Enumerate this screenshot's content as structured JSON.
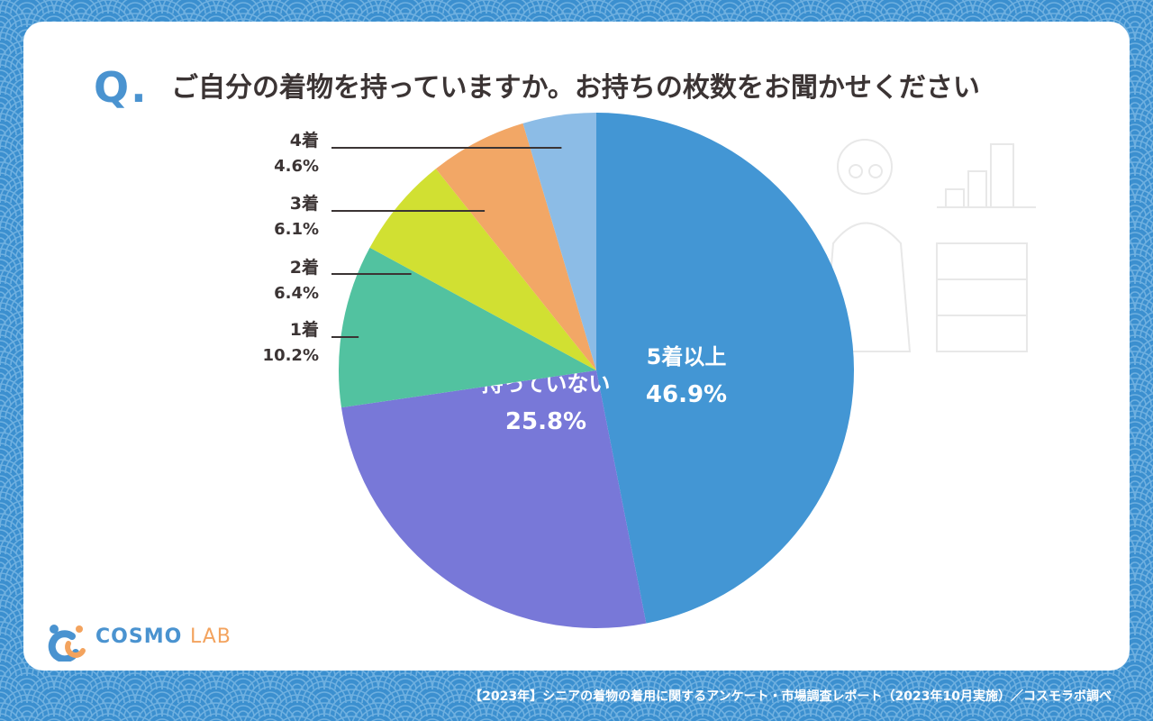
{
  "title": {
    "q_mark": "Q.",
    "text": "ご自分の着物を持っていますか。お持ちの枚数をお聞かせください"
  },
  "footer": {
    "source": "【2023年】シニアの着物の着用に関するアンケート・市場調査レポート（2023年10月実施）／コスモラボ調べ"
  },
  "logo": {
    "text_primary": "COSMO",
    "text_secondary": "LAB",
    "icon": "cosmo-lab-logo-icon"
  },
  "colors": {
    "background": "#3b8fcf",
    "wave_line": "#6fb0e0",
    "card": "#ffffff",
    "title_text": "#3b3434",
    "q_mark": "#4a93d0"
  },
  "chart_data": {
    "type": "pie",
    "start_angle_deg": 0,
    "direction": "clockwise",
    "slices": [
      {
        "label": "5着以上",
        "value": 46.9,
        "value_label": "46.9%",
        "color": "#4396d4",
        "label_position": "inside"
      },
      {
        "label": "持っていない",
        "value": 25.8,
        "value_label": "25.8%",
        "color": "#7878d8",
        "label_position": "inside"
      },
      {
        "label": "1着",
        "value": 10.2,
        "value_label": "10.2%",
        "color": "#52c2a0",
        "label_position": "outside-left"
      },
      {
        "label": "2着",
        "value": 6.4,
        "value_label": "6.4%",
        "color": "#d1e032",
        "label_position": "outside-left"
      },
      {
        "label": "3着",
        "value": 6.1,
        "value_label": "6.1%",
        "color": "#f2a766",
        "label_position": "outside-left"
      },
      {
        "label": "4着",
        "value": 4.6,
        "value_label": "4.6%",
        "color": "#8cbce6",
        "label_position": "outside-left"
      }
    ]
  }
}
